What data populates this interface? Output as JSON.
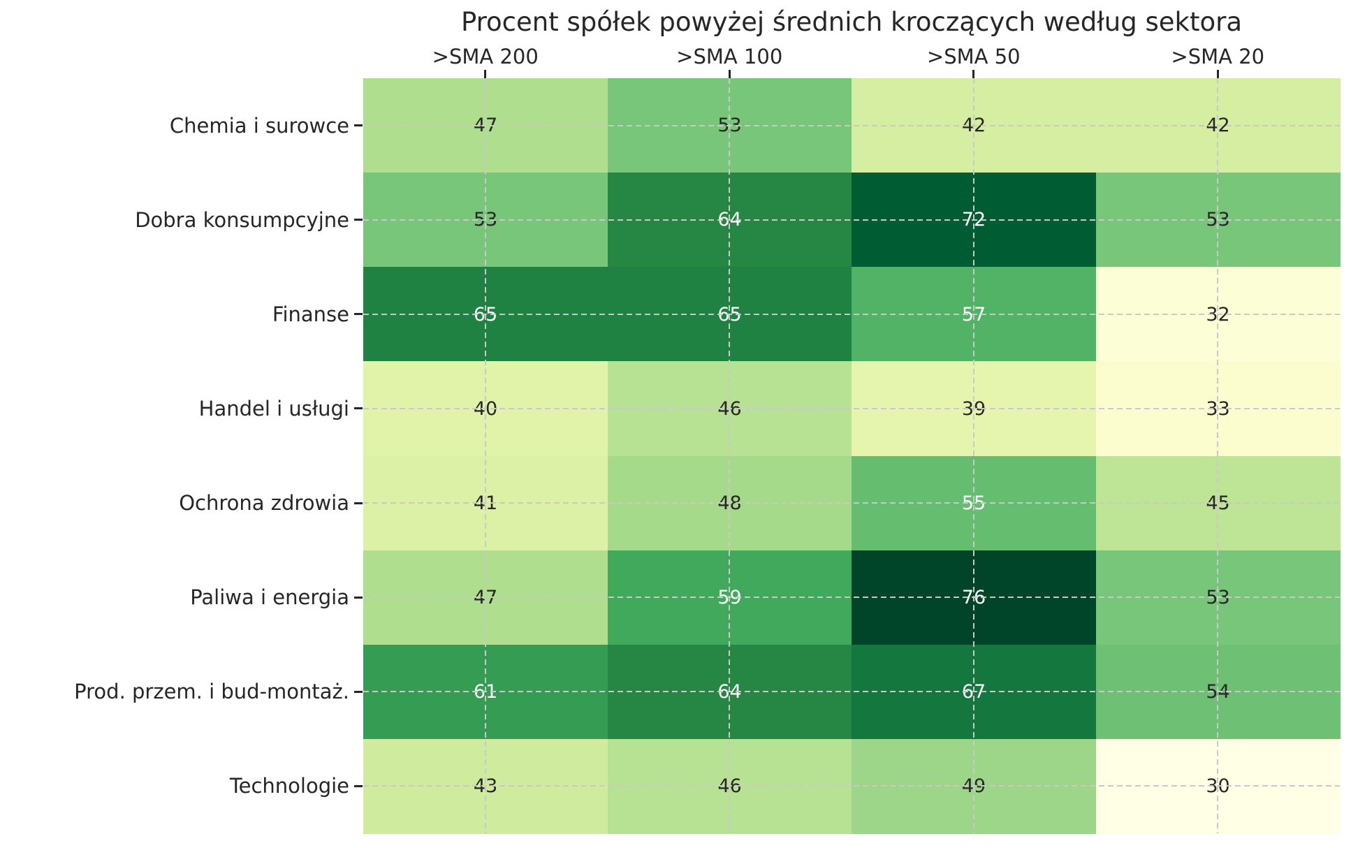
{
  "title": "Procent spółek powyżej średnich kroczących według sektora",
  "chart_data": {
    "type": "heatmap",
    "title": "Procent spółek powyżej średnich kroczących według sektora",
    "columns": [
      ">SMA 200",
      ">SMA 100",
      ">SMA 50",
      ">SMA 20"
    ],
    "rows": [
      "Chemia i surowce",
      "Dobra konsumpcyjne",
      "Finanse",
      "Handel i usługi",
      "Ochrona zdrowia",
      "Paliwa i energia",
      "Prod. przem. i bud-montaż.",
      "Technologie"
    ],
    "values": [
      [
        47,
        53,
        42,
        42
      ],
      [
        53,
        64,
        72,
        53
      ],
      [
        65,
        65,
        57,
        32
      ],
      [
        40,
        46,
        39,
        33
      ],
      [
        41,
        48,
        55,
        45
      ],
      [
        47,
        59,
        76,
        53
      ],
      [
        61,
        64,
        67,
        54
      ],
      [
        43,
        46,
        49,
        30
      ]
    ],
    "colormap": "YlGn",
    "vmin": 30,
    "vmax": 76,
    "annotated": true,
    "grid": "dashed",
    "xaxis_position": "top",
    "legend": "none"
  },
  "style": {
    "background": "#ffffff",
    "text_color": "#262626",
    "annotation_dark": "#262626",
    "annotation_light": "#ffffff",
    "gridline_color": "#c9c9c9",
    "tick_color": "#262626",
    "colormap_anchors": [
      "#ffffe5",
      "#f7fcb9",
      "#d9f0a3",
      "#addd8e",
      "#78c679",
      "#41ab5d",
      "#238443",
      "#006837",
      "#004529"
    ]
  }
}
